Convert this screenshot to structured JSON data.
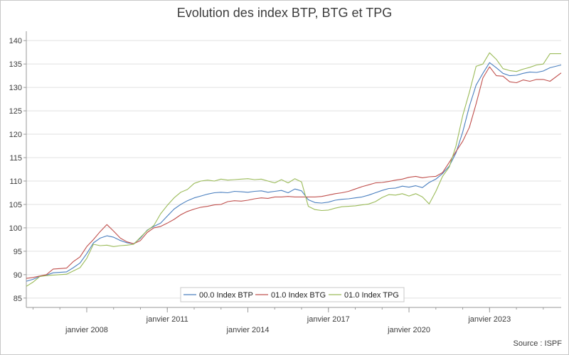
{
  "chart_data": {
    "type": "line",
    "title": "Evolution des index BTP, BTG et TPG",
    "source": "Source : ISPF",
    "xlabel": "",
    "ylabel": "",
    "ylim": [
      83,
      142
    ],
    "y_ticks": [
      85,
      90,
      95,
      100,
      105,
      110,
      115,
      120,
      125,
      130,
      135,
      140
    ],
    "x_range": [
      "2005-10",
      "2025-09"
    ],
    "x_ticks": [
      {
        "date": "2008-01",
        "label": "janvier 2008",
        "row": 2
      },
      {
        "date": "2011-01",
        "label": "janvier 2011",
        "row": 1
      },
      {
        "date": "2014-01",
        "label": "janvier 2014",
        "row": 2
      },
      {
        "date": "2017-01",
        "label": "janvier 2017",
        "row": 1
      },
      {
        "date": "2020-01",
        "label": "janvier 2020",
        "row": 2
      },
      {
        "date": "2023-01",
        "label": "janvier 2023",
        "row": 1
      }
    ],
    "grid": true,
    "legend_position": "bottom-center",
    "series": [
      {
        "name": "00.0 Index BTP",
        "color": "#4a7fbf",
        "points": [
          [
            "2005-10",
            88.6
          ],
          [
            "2006-01",
            89.0
          ],
          [
            "2006-04",
            89.6
          ],
          [
            "2006-07",
            89.9
          ],
          [
            "2006-10",
            90.4
          ],
          [
            "2007-01",
            90.5
          ],
          [
            "2007-04",
            90.6
          ],
          [
            "2007-07",
            91.5
          ],
          [
            "2007-10",
            92.5
          ],
          [
            "2008-01",
            94.5
          ],
          [
            "2008-04",
            96.8
          ],
          [
            "2008-07",
            97.8
          ],
          [
            "2008-10",
            98.3
          ],
          [
            "2009-01",
            98.0
          ],
          [
            "2009-04",
            97.3
          ],
          [
            "2009-07",
            96.8
          ],
          [
            "2009-10",
            96.6
          ],
          [
            "2010-01",
            97.8
          ],
          [
            "2010-04",
            99.5
          ],
          [
            "2010-07",
            100.3
          ],
          [
            "2010-10",
            101.0
          ],
          [
            "2011-01",
            102.5
          ],
          [
            "2011-04",
            104.0
          ],
          [
            "2011-07",
            105.0
          ],
          [
            "2011-10",
            105.8
          ],
          [
            "2012-01",
            106.4
          ],
          [
            "2012-04",
            106.8
          ],
          [
            "2012-07",
            107.2
          ],
          [
            "2012-10",
            107.5
          ],
          [
            "2013-01",
            107.6
          ],
          [
            "2013-04",
            107.5
          ],
          [
            "2013-07",
            107.8
          ],
          [
            "2013-10",
            107.7
          ],
          [
            "2014-01",
            107.6
          ],
          [
            "2014-04",
            107.8
          ],
          [
            "2014-07",
            107.9
          ],
          [
            "2014-10",
            107.6
          ],
          [
            "2015-01",
            107.8
          ],
          [
            "2015-04",
            108.0
          ],
          [
            "2015-07",
            107.5
          ],
          [
            "2015-10",
            108.3
          ],
          [
            "2016-01",
            107.9
          ],
          [
            "2016-04",
            106.0
          ],
          [
            "2016-07",
            105.4
          ],
          [
            "2016-10",
            105.3
          ],
          [
            "2017-01",
            105.5
          ],
          [
            "2017-04",
            105.9
          ],
          [
            "2017-07",
            106.1
          ],
          [
            "2017-10",
            106.2
          ],
          [
            "2018-01",
            106.4
          ],
          [
            "2018-04",
            106.6
          ],
          [
            "2018-07",
            107.0
          ],
          [
            "2018-10",
            107.5
          ],
          [
            "2019-01",
            108.0
          ],
          [
            "2019-04",
            108.4
          ],
          [
            "2019-07",
            108.5
          ],
          [
            "2019-10",
            108.9
          ],
          [
            "2020-01",
            108.7
          ],
          [
            "2020-04",
            109.0
          ],
          [
            "2020-07",
            108.6
          ],
          [
            "2020-10",
            109.7
          ],
          [
            "2021-01",
            110.4
          ],
          [
            "2021-04",
            111.6
          ],
          [
            "2021-07",
            113.2
          ],
          [
            "2021-10",
            116.0
          ],
          [
            "2022-01",
            120.5
          ],
          [
            "2022-04",
            126.0
          ],
          [
            "2022-07",
            130.5
          ],
          [
            "2022-10",
            133.0
          ],
          [
            "2023-01",
            135.3
          ],
          [
            "2023-04",
            134.2
          ],
          [
            "2023-07",
            133.0
          ],
          [
            "2023-10",
            132.5
          ],
          [
            "2024-01",
            132.6
          ],
          [
            "2024-04",
            133.0
          ],
          [
            "2024-07",
            133.3
          ],
          [
            "2024-10",
            133.2
          ],
          [
            "2025-01",
            133.5
          ],
          [
            "2025-04",
            134.2
          ],
          [
            "2025-09",
            134.8
          ]
        ]
      },
      {
        "name": "01.0 Index BTG",
        "color": "#c0504d",
        "points": [
          [
            "2005-10",
            89.2
          ],
          [
            "2006-01",
            89.4
          ],
          [
            "2006-04",
            89.7
          ],
          [
            "2006-07",
            90.0
          ],
          [
            "2006-10",
            91.2
          ],
          [
            "2007-01",
            91.3
          ],
          [
            "2007-04",
            91.4
          ],
          [
            "2007-07",
            92.8
          ],
          [
            "2007-10",
            93.8
          ],
          [
            "2008-01",
            96.0
          ],
          [
            "2008-04",
            97.5
          ],
          [
            "2008-07",
            99.2
          ],
          [
            "2008-10",
            100.7
          ],
          [
            "2009-01",
            99.3
          ],
          [
            "2009-04",
            97.8
          ],
          [
            "2009-07",
            97.0
          ],
          [
            "2009-10",
            96.6
          ],
          [
            "2010-01",
            97.3
          ],
          [
            "2010-04",
            99.0
          ],
          [
            "2010-07",
            100.0
          ],
          [
            "2010-10",
            100.3
          ],
          [
            "2011-01",
            101.0
          ],
          [
            "2011-04",
            101.8
          ],
          [
            "2011-07",
            102.8
          ],
          [
            "2011-10",
            103.5
          ],
          [
            "2012-01",
            104.0
          ],
          [
            "2012-04",
            104.4
          ],
          [
            "2012-07",
            104.6
          ],
          [
            "2012-10",
            104.9
          ],
          [
            "2013-01",
            105.0
          ],
          [
            "2013-04",
            105.6
          ],
          [
            "2013-07",
            105.8
          ],
          [
            "2013-10",
            105.7
          ],
          [
            "2014-01",
            105.9
          ],
          [
            "2014-04",
            106.2
          ],
          [
            "2014-07",
            106.4
          ],
          [
            "2014-10",
            106.3
          ],
          [
            "2015-01",
            106.6
          ],
          [
            "2015-04",
            106.6
          ],
          [
            "2015-07",
            106.7
          ],
          [
            "2015-10",
            106.6
          ],
          [
            "2016-01",
            106.6
          ],
          [
            "2016-04",
            106.6
          ],
          [
            "2016-07",
            106.6
          ],
          [
            "2016-10",
            106.7
          ],
          [
            "2017-01",
            107.0
          ],
          [
            "2017-04",
            107.3
          ],
          [
            "2017-07",
            107.5
          ],
          [
            "2017-10",
            107.8
          ],
          [
            "2018-01",
            108.3
          ],
          [
            "2018-04",
            108.8
          ],
          [
            "2018-07",
            109.2
          ],
          [
            "2018-10",
            109.6
          ],
          [
            "2019-01",
            109.7
          ],
          [
            "2019-04",
            109.9
          ],
          [
            "2019-07",
            110.2
          ],
          [
            "2019-10",
            110.4
          ],
          [
            "2020-01",
            110.8
          ],
          [
            "2020-04",
            111.0
          ],
          [
            "2020-07",
            110.7
          ],
          [
            "2020-10",
            110.9
          ],
          [
            "2021-01",
            111.0
          ],
          [
            "2021-04",
            111.8
          ],
          [
            "2021-07",
            114.0
          ],
          [
            "2021-10",
            116.3
          ],
          [
            "2022-01",
            118.5
          ],
          [
            "2022-04",
            121.5
          ],
          [
            "2022-07",
            126.5
          ],
          [
            "2022-10",
            132.0
          ],
          [
            "2023-01",
            134.4
          ],
          [
            "2023-04",
            132.5
          ],
          [
            "2023-07",
            132.4
          ],
          [
            "2023-10",
            131.2
          ],
          [
            "2024-01",
            131.0
          ],
          [
            "2024-04",
            131.6
          ],
          [
            "2024-07",
            131.3
          ],
          [
            "2024-10",
            131.7
          ],
          [
            "2025-01",
            131.7
          ],
          [
            "2025-04",
            131.3
          ],
          [
            "2025-09",
            133.1
          ]
        ]
      },
      {
        "name": "01.0 Index TPG",
        "color": "#9bbb59",
        "points": [
          [
            "2005-10",
            87.5
          ],
          [
            "2006-01",
            88.4
          ],
          [
            "2006-04",
            89.6
          ],
          [
            "2006-07",
            89.8
          ],
          [
            "2006-10",
            89.9
          ],
          [
            "2007-01",
            90.0
          ],
          [
            "2007-04",
            90.1
          ],
          [
            "2007-07",
            90.8
          ],
          [
            "2007-10",
            91.5
          ],
          [
            "2008-01",
            93.5
          ],
          [
            "2008-04",
            96.5
          ],
          [
            "2008-07",
            96.2
          ],
          [
            "2008-10",
            96.3
          ],
          [
            "2009-01",
            96.0
          ],
          [
            "2009-04",
            96.2
          ],
          [
            "2009-07",
            96.3
          ],
          [
            "2009-10",
            96.5
          ],
          [
            "2010-01",
            98.0
          ],
          [
            "2010-04",
            99.4
          ],
          [
            "2010-07",
            100.5
          ],
          [
            "2010-10",
            103.0
          ],
          [
            "2011-01",
            104.8
          ],
          [
            "2011-04",
            106.4
          ],
          [
            "2011-07",
            107.6
          ],
          [
            "2011-10",
            108.2
          ],
          [
            "2012-01",
            109.5
          ],
          [
            "2012-04",
            110.0
          ],
          [
            "2012-07",
            110.2
          ],
          [
            "2012-10",
            110.0
          ],
          [
            "2013-01",
            110.4
          ],
          [
            "2013-04",
            110.2
          ],
          [
            "2013-07",
            110.3
          ],
          [
            "2013-10",
            110.4
          ],
          [
            "2014-01",
            110.5
          ],
          [
            "2014-04",
            110.3
          ],
          [
            "2014-07",
            110.4
          ],
          [
            "2014-10",
            110.0
          ],
          [
            "2015-01",
            109.6
          ],
          [
            "2015-04",
            110.3
          ],
          [
            "2015-07",
            109.6
          ],
          [
            "2015-10",
            110.5
          ],
          [
            "2016-01",
            109.8
          ],
          [
            "2016-04",
            104.6
          ],
          [
            "2016-07",
            103.9
          ],
          [
            "2016-10",
            103.7
          ],
          [
            "2017-01",
            103.8
          ],
          [
            "2017-04",
            104.2
          ],
          [
            "2017-07",
            104.5
          ],
          [
            "2017-10",
            104.6
          ],
          [
            "2018-01",
            104.7
          ],
          [
            "2018-04",
            104.9
          ],
          [
            "2018-07",
            105.1
          ],
          [
            "2018-10",
            105.6
          ],
          [
            "2019-01",
            106.5
          ],
          [
            "2019-04",
            107.1
          ],
          [
            "2019-07",
            107.0
          ],
          [
            "2019-10",
            107.3
          ],
          [
            "2020-01",
            106.8
          ],
          [
            "2020-04",
            107.3
          ],
          [
            "2020-07",
            106.6
          ],
          [
            "2020-10",
            105.1
          ],
          [
            "2021-01",
            107.8
          ],
          [
            "2021-04",
            111.0
          ],
          [
            "2021-07",
            113.0
          ],
          [
            "2021-10",
            117.5
          ],
          [
            "2022-01",
            124.0
          ],
          [
            "2022-04",
            129.0
          ],
          [
            "2022-07",
            134.5
          ],
          [
            "2022-10",
            135.0
          ],
          [
            "2023-01",
            137.4
          ],
          [
            "2023-04",
            136.0
          ],
          [
            "2023-07",
            134.0
          ],
          [
            "2023-10",
            133.6
          ],
          [
            "2024-01",
            133.4
          ],
          [
            "2024-04",
            133.9
          ],
          [
            "2024-07",
            134.3
          ],
          [
            "2024-10",
            134.8
          ],
          [
            "2025-01",
            135.0
          ],
          [
            "2025-04",
            137.2
          ],
          [
            "2025-09",
            137.2
          ]
        ]
      }
    ]
  }
}
